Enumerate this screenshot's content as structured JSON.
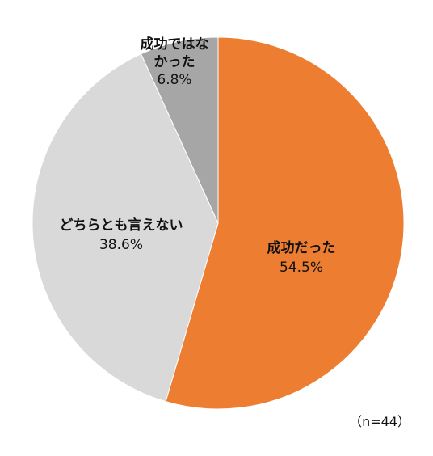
{
  "chart_data": {
    "type": "pie",
    "slices": [
      {
        "label": "成功だった",
        "value": 54.5,
        "value_label": "54.5%",
        "color": "#ED7D31"
      },
      {
        "label": "どちらとも言えない",
        "value": 38.6,
        "value_label": "38.6%",
        "color": "#D9D9D9"
      },
      {
        "label": "成功ではなかった",
        "value": 6.8,
        "value_label": "6.8%",
        "color": "#A6A6A6"
      }
    ],
    "start_angle": "12 o'clock",
    "direction": "clockwise",
    "legend": "none",
    "data_labels": "on-slice"
  },
  "note": {
    "text": "（n=44）"
  }
}
